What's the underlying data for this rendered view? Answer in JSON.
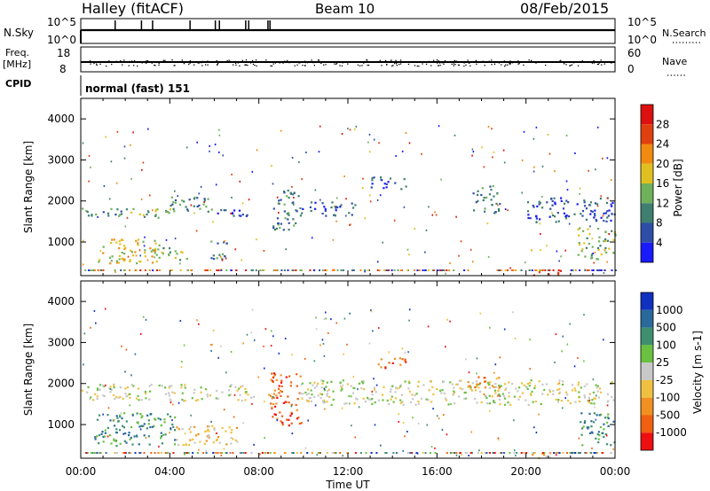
{
  "header": {
    "title": "Halley (fitACF)",
    "beam": "Beam 10",
    "date": "08/Feb/2015"
  },
  "panels": {
    "nsky": {
      "label": "N.Sky",
      "left_ticks": [
        "10^5",
        "10^0"
      ],
      "right_ticks": [
        "10^5",
        "10^0"
      ],
      "right_label": "N.Search"
    },
    "freq": {
      "label_line1": "Freq.",
      "label_line2": "[MHz]",
      "left_ticks": [
        "18",
        "8"
      ],
      "right_ticks": [
        "60",
        "0"
      ],
      "right_label": "Nave"
    },
    "cpid": {
      "label": "CPID",
      "value": "normal (fast) 151"
    }
  },
  "chart_data": [
    {
      "type": "heatmap",
      "name": "power",
      "ylabel": "Slant Range [km]",
      "ylim": [
        180,
        4500
      ],
      "yticks": [
        1000,
        2000,
        3000,
        4000
      ],
      "xlim": [
        0,
        24
      ],
      "colorbar": {
        "label": "Power [dB]",
        "ticks": [
          4,
          8,
          12,
          16,
          20,
          24,
          28
        ],
        "colors": [
          "#1a1aff",
          "#2e4ea8",
          "#3e7f70",
          "#6fb05a",
          "#e0c020",
          "#f08a10",
          "#e04010",
          "#dd1010"
        ],
        "tick_labels": [
          "4",
          "8",
          "12",
          "16",
          "20",
          "24",
          "28"
        ]
      },
      "bands": [
        {
          "t0": 0.0,
          "t1": 2.0,
          "r0": 1620,
          "r1": 1860,
          "c": 2
        },
        {
          "t0": 2.0,
          "t1": 4.0,
          "r0": 1560,
          "r1": 1830,
          "c": 3
        },
        {
          "t0": 4.0,
          "t1": 6.0,
          "r0": 1720,
          "r1": 2120,
          "c": 2
        },
        {
          "t0": 6.0,
          "t1": 7.6,
          "r0": 1650,
          "r1": 1900,
          "c": 1
        },
        {
          "t0": 8.6,
          "t1": 9.8,
          "r0": 1300,
          "r1": 2300,
          "c": 2
        },
        {
          "t0": 9.8,
          "t1": 12.3,
          "r0": 1650,
          "r1": 2000,
          "c": 1
        },
        {
          "t0": 0.6,
          "t1": 3.6,
          "r0": 500,
          "r1": 1100,
          "c": 4
        },
        {
          "t0": 3.6,
          "t1": 4.8,
          "r0": 550,
          "r1": 900,
          "c": 3
        },
        {
          "t0": 5.8,
          "t1": 6.6,
          "r0": 600,
          "r1": 1100,
          "c": 2
        },
        {
          "t0": 13.0,
          "t1": 14.6,
          "r0": 2300,
          "r1": 2600,
          "c": 1
        },
        {
          "t0": 17.6,
          "t1": 18.8,
          "r0": 1700,
          "r1": 2400,
          "c": 2
        },
        {
          "t0": 20.0,
          "t1": 24.0,
          "r0": 1500,
          "r1": 2100,
          "c": 1
        },
        {
          "t0": 22.3,
          "t1": 24.0,
          "r0": 600,
          "r1": 1400,
          "c": 3
        },
        {
          "t0": 20.3,
          "t1": 21.6,
          "r0": 200,
          "r1": 330,
          "c": 6
        }
      ]
    },
    {
      "type": "heatmap",
      "name": "velocity",
      "ylabel": "Slant Range [km]",
      "ylim": [
        180,
        4500
      ],
      "yticks": [
        1000,
        2000,
        3000,
        4000
      ],
      "xlim": [
        0,
        24
      ],
      "xticks": [
        "00:00",
        "04:00",
        "08:00",
        "12:00",
        "16:00",
        "20:00",
        "00:00"
      ],
      "xlabel": "Time UT",
      "colorbar": {
        "label": "Velocity [m s-1]",
        "ticks": [
          1000,
          500,
          100,
          25,
          -25,
          -100,
          -500,
          -1000
        ],
        "colors": [
          "#1030c0",
          "#2a6a9a",
          "#3e8f70",
          "#6ac040",
          "#c8c8c8",
          "#f0c040",
          "#f09020",
          "#f06010",
          "#ee1010"
        ],
        "tick_labels": [
          "1000",
          "500",
          "100",
          "25",
          "-25",
          "-100",
          "-500",
          "-1000"
        ]
      },
      "bands": [
        {
          "t0": 0.0,
          "t1": 7.8,
          "r0": 1600,
          "r1": 2000,
          "c": 4
        },
        {
          "t0": 0.6,
          "t1": 4.2,
          "r0": 500,
          "r1": 1300,
          "c": 2
        },
        {
          "t0": 4.2,
          "t1": 7.0,
          "r0": 500,
          "r1": 1000,
          "c": 5
        },
        {
          "t0": 8.4,
          "t1": 9.9,
          "r0": 1000,
          "r1": 2300,
          "c": 7
        },
        {
          "t0": 9.8,
          "t1": 24.0,
          "r0": 1500,
          "r1": 2100,
          "c": 4
        },
        {
          "t0": 13.0,
          "t1": 14.6,
          "r0": 2400,
          "r1": 2650,
          "c": 7
        },
        {
          "t0": 17.3,
          "t1": 18.8,
          "r0": 1700,
          "r1": 2200,
          "c": 6
        },
        {
          "t0": 22.4,
          "t1": 24.0,
          "r0": 500,
          "r1": 1300,
          "c": 2
        },
        {
          "t0": 20.2,
          "t1": 21.8,
          "r0": 200,
          "r1": 330,
          "c": 5
        }
      ]
    }
  ]
}
